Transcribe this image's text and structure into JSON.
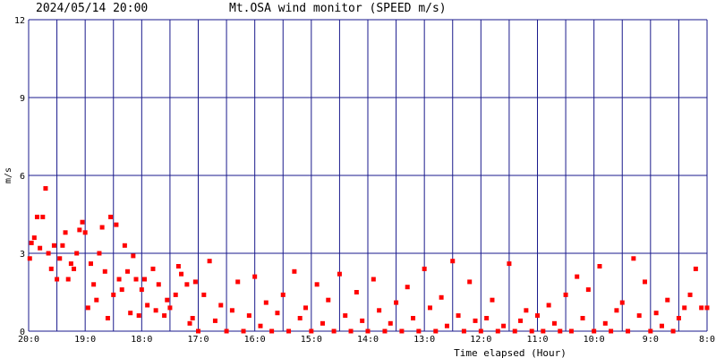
{
  "chart_data": {
    "type": "scatter",
    "title": "Mt.OSA wind monitor (SPEED m/s)",
    "subtitle": "2024/05/14 20:00",
    "y_label": "m/s",
    "x_label": "Time elapsed (Hour)",
    "color": "#ff0000",
    "grid_color": "#1a1a8c",
    "grid": true,
    "xlim": [
      0,
      12
    ],
    "ylim": [
      0,
      12
    ],
    "yticks": [
      0,
      3,
      6,
      9,
      12
    ],
    "xticks": [
      {
        "value": 0,
        "label": "20:0"
      },
      {
        "value": 1,
        "label": "19:0"
      },
      {
        "value": 2,
        "label": "18:0"
      },
      {
        "value": 3,
        "label": "17:0"
      },
      {
        "value": 4,
        "label": "16:0"
      },
      {
        "value": 5,
        "label": "15:0"
      },
      {
        "value": 6,
        "label": "14:0"
      },
      {
        "value": 7,
        "label": "13:0"
      },
      {
        "value": 8,
        "label": "12:0"
      },
      {
        "value": 9,
        "label": "11:0"
      },
      {
        "value": 10,
        "label": "10:0"
      },
      {
        "value": 11,
        "label": "9:0"
      },
      {
        "value": 12,
        "label": "8:0"
      }
    ],
    "xminor": [
      0.5,
      1.5,
      2.5,
      3.5,
      4.5,
      5.5,
      6.5,
      7.5,
      8.5,
      9.5,
      10.5,
      11.5
    ],
    "x": [
      0.02,
      0.05,
      0.1,
      0.15,
      0.2,
      0.25,
      0.3,
      0.35,
      0.4,
      0.45,
      0.5,
      0.55,
      0.6,
      0.65,
      0.7,
      0.75,
      0.8,
      0.85,
      0.9,
      0.95,
      1.0,
      1.05,
      1.1,
      1.15,
      1.2,
      1.25,
      1.3,
      1.35,
      1.4,
      1.45,
      1.5,
      1.55,
      1.6,
      1.65,
      1.7,
      1.75,
      1.8,
      1.85,
      1.9,
      1.95,
      2.0,
      2.05,
      2.1,
      2.2,
      2.25,
      2.3,
      2.4,
      2.45,
      2.5,
      2.6,
      2.65,
      2.7,
      2.8,
      2.85,
      2.9,
      2.95,
      3.0,
      3.1,
      3.2,
      3.3,
      3.4,
      3.5,
      3.6,
      3.7,
      3.8,
      3.9,
      4.0,
      4.1,
      4.2,
      4.3,
      4.4,
      4.5,
      4.6,
      4.7,
      4.8,
      4.9,
      5.0,
      5.1,
      5.2,
      5.3,
      5.4,
      5.5,
      5.6,
      5.7,
      5.8,
      5.9,
      6.0,
      6.1,
      6.2,
      6.3,
      6.4,
      6.5,
      6.6,
      6.7,
      6.8,
      6.9,
      7.0,
      7.1,
      7.2,
      7.3,
      7.4,
      7.5,
      7.6,
      7.7,
      7.8,
      7.9,
      8.0,
      8.1,
      8.2,
      8.3,
      8.4,
      8.5,
      8.6,
      8.7,
      8.8,
      8.9,
      9.0,
      9.1,
      9.2,
      9.3,
      9.4,
      9.5,
      9.6,
      9.7,
      9.8,
      9.9,
      10.0,
      10.1,
      10.2,
      10.3,
      10.4,
      10.5,
      10.6,
      10.7,
      10.8,
      10.9,
      11.0,
      11.1,
      11.2,
      11.3,
      11.4,
      11.5,
      11.6,
      11.7,
      11.8,
      11.9,
      12.0
    ],
    "y": [
      2.8,
      3.4,
      3.6,
      4.4,
      3.2,
      4.4,
      5.5,
      3.0,
      2.4,
      3.3,
      2.0,
      2.8,
      3.3,
      3.8,
      2.0,
      2.6,
      2.4,
      3.0,
      3.9,
      4.2,
      3.8,
      0.9,
      2.6,
      1.8,
      1.2,
      3.0,
      4.0,
      2.3,
      0.5,
      4.4,
      1.4,
      4.1,
      2.0,
      1.6,
      3.3,
      2.3,
      0.7,
      2.9,
      2.0,
      0.6,
      1.6,
      2.0,
      1.0,
      2.4,
      0.8,
      1.8,
      0.6,
      1.2,
      0.9,
      1.4,
      2.5,
      2.2,
      1.8,
      0.3,
      0.5,
      1.9,
      0,
      1.4,
      2.7,
      0.4,
      1.0,
      0,
      0.8,
      1.9,
      0,
      0.6,
      2.1,
      0.2,
      1.1,
      0,
      0.7,
      1.4,
      0,
      2.3,
      0.5,
      0.9,
      0,
      1.8,
      0.3,
      1.2,
      0,
      2.2,
      0.6,
      0,
      1.5,
      0.4,
      0,
      2.0,
      0.8,
      0,
      0.3,
      1.1,
      0,
      1.7,
      0.5,
      0,
      2.4,
      0.9,
      0,
      1.3,
      0.2,
      2.7,
      0.6,
      0,
      1.9,
      0.4,
      0,
      0.5,
      1.2,
      0,
      0.2,
      2.6,
      0,
      0.4,
      0.8,
      0,
      0.6,
      0,
      1.0,
      0.3,
      0,
      1.4,
      0,
      2.1,
      0.5,
      1.6,
      0,
      2.5,
      0.3,
      0,
      0.8,
      1.1,
      0,
      2.8,
      0.6,
      1.9,
      0,
      0.7,
      0.2,
      1.2,
      0,
      0.5,
      0.9,
      1.4,
      2.4,
      0.9,
      0.9
    ]
  }
}
